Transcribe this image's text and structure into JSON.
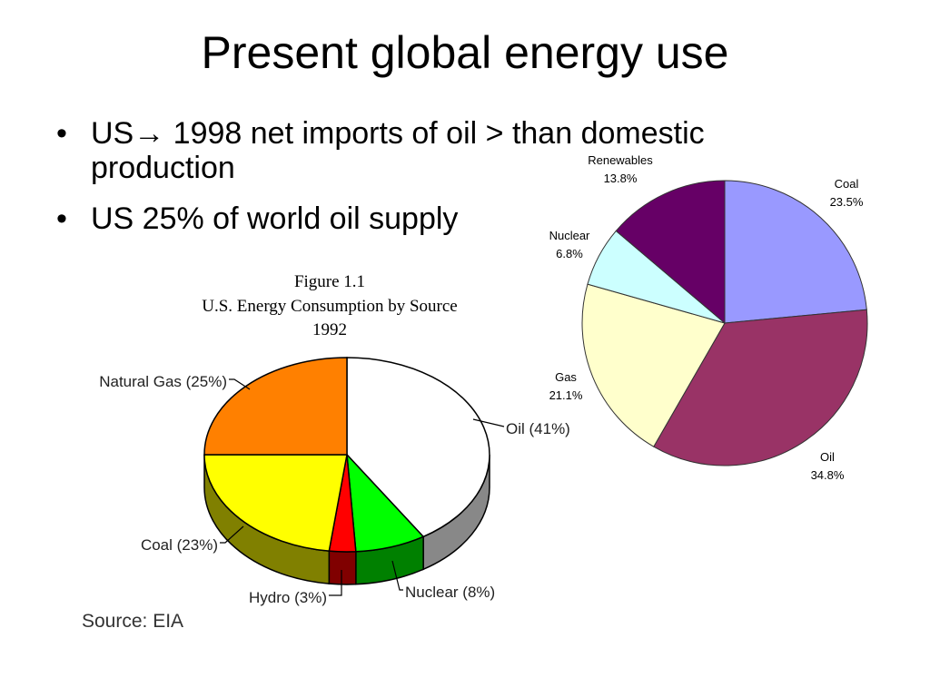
{
  "slide": {
    "title": "Present global energy use",
    "bullets": [
      {
        "prefix": "US",
        "arrow": "→",
        "text": " 1998 net imports of oil > than domestic production"
      },
      {
        "prefix": "",
        "arrow": "",
        "text": "US 25% of world oil supply"
      }
    ]
  },
  "chart_data": [
    {
      "type": "pie",
      "title": "Figure 1.1",
      "subtitle": "U.S. Energy Consumption by Source",
      "year": "1992",
      "source": "Source: EIA",
      "style": "3d",
      "slices": [
        {
          "name": "Oil",
          "label": "Oil (41%)",
          "value": 41,
          "color": "#ffffff"
        },
        {
          "name": "Nuclear",
          "label": "Nuclear (8%)",
          "value": 8,
          "color": "#00ff00"
        },
        {
          "name": "Hydro",
          "label": "Hydro (3%)",
          "value": 3,
          "color": "#ff0000"
        },
        {
          "name": "Coal",
          "label": "Coal (23%)",
          "value": 23,
          "color": "#ffff00"
        },
        {
          "name": "Natural Gas",
          "label": "Natural Gas (25%)",
          "value": 25,
          "color": "#ff8000"
        }
      ]
    },
    {
      "type": "pie",
      "slices": [
        {
          "name": "Coal",
          "value_label": "23.5%",
          "value": 23.5,
          "color": "#9999ff"
        },
        {
          "name": "Oil",
          "value_label": "34.8%",
          "value": 34.8,
          "color": "#993366"
        },
        {
          "name": "Gas",
          "value_label": "21.1%",
          "value": 21.1,
          "color": "#ffffcc"
        },
        {
          "name": "Nuclear",
          "value_label": "6.8%",
          "value": 6.8,
          "color": "#ccffff"
        },
        {
          "name": "Renewables",
          "value_label": "13.8%",
          "value": 13.8,
          "color": "#660066"
        }
      ]
    }
  ]
}
